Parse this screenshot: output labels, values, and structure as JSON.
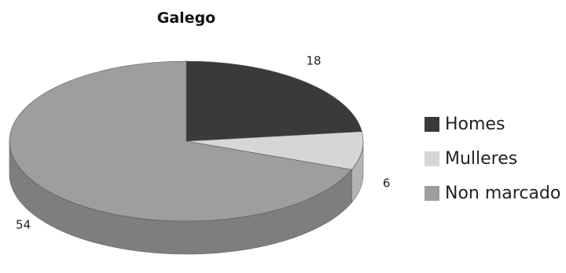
{
  "chart_data": {
    "type": "pie",
    "title": "Galego",
    "categories": [
      "Homes",
      "Mulleres",
      "Non marcado"
    ],
    "values": [
      18,
      6,
      54
    ],
    "data_labels": [
      "18",
      "6",
      "54"
    ],
    "colors": [
      "#3a3a3a",
      "#d6d6d6",
      "#9e9e9e"
    ],
    "side_colors": [
      "#2a2a2a",
      "#b4b4b4",
      "#7e7e7e"
    ],
    "legend_position": "right",
    "three_d": true,
    "start_angle": "top, clockwise"
  }
}
